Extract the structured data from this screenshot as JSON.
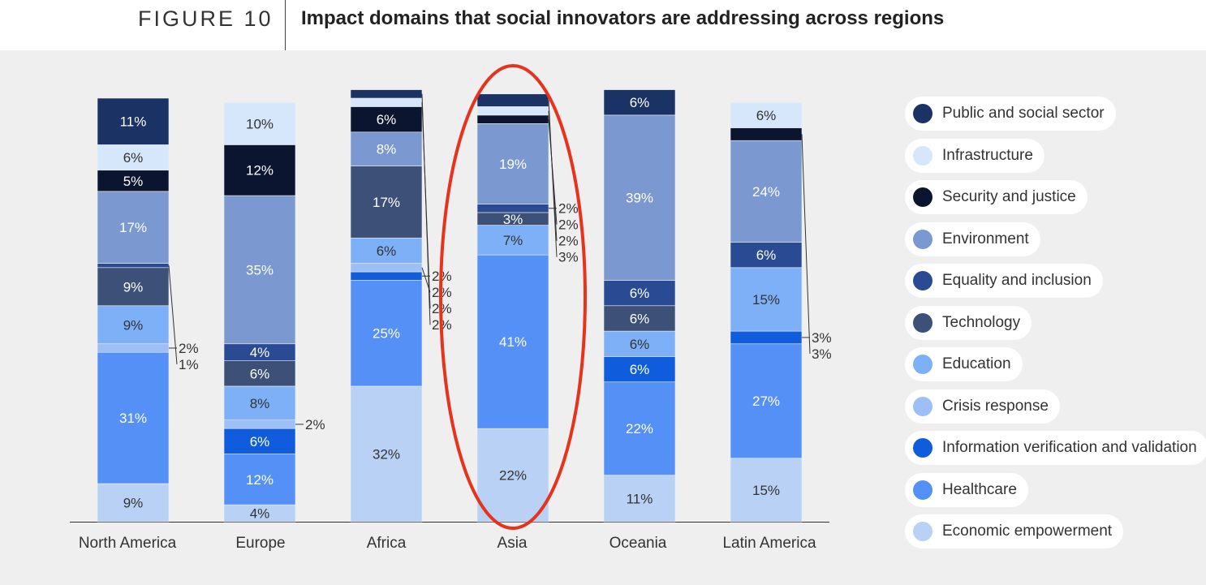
{
  "header": {
    "figure_label": "FIGURE 10",
    "title": "Impact domains that social innovators are addressing across regions"
  },
  "legend": [
    {
      "label": "Public and social sector",
      "color": "#1b3265"
    },
    {
      "label": "Infrastructure",
      "color": "#d6e6fb"
    },
    {
      "label": "Security and justice",
      "color": "#0c1530"
    },
    {
      "label": "Environment",
      "color": "#7b98d0"
    },
    {
      "label": "Equality and inclusion",
      "color": "#2a4a94"
    },
    {
      "label": "Technology",
      "color": "#3d5078"
    },
    {
      "label": "Education",
      "color": "#7eb0f7"
    },
    {
      "label": "Crisis response",
      "color": "#9dbff6"
    },
    {
      "label": "Information verification and validation",
      "color": "#0f5ddc"
    },
    {
      "label": "Healthcare",
      "color": "#5590f7"
    },
    {
      "label": "Economic empowerment",
      "color": "#b8d1f5"
    }
  ],
  "chart_data": {
    "type": "bar",
    "stacked": true,
    "categories": [
      "North America",
      "Europe",
      "Africa",
      "Asia",
      "Oceania",
      "Latin America"
    ],
    "series": [
      {
        "name": "Economic empowerment",
        "color": "#b8d1f5",
        "values": [
          9,
          4,
          32,
          22,
          11,
          15
        ]
      },
      {
        "name": "Healthcare",
        "color": "#5590f7",
        "values": [
          31,
          12,
          25,
          41,
          22,
          27
        ]
      },
      {
        "name": "Information verification and validation",
        "color": "#0f5ddc",
        "values": [
          0,
          6,
          2,
          0,
          6,
          3
        ]
      },
      {
        "name": "Crisis response",
        "color": "#9dbff6",
        "values": [
          2,
          2,
          2,
          0,
          0,
          0
        ]
      },
      {
        "name": "Education",
        "color": "#7eb0f7",
        "values": [
          9,
          8,
          6,
          7,
          6,
          15
        ]
      },
      {
        "name": "Technology",
        "color": "#3d5078",
        "values": [
          9,
          6,
          17,
          3,
          6,
          0
        ]
      },
      {
        "name": "Equality and inclusion",
        "color": "#2a4a94",
        "values": [
          1,
          4,
          0,
          2,
          6,
          6
        ]
      },
      {
        "name": "Environment",
        "color": "#7b98d0",
        "values": [
          17,
          35,
          8,
          19,
          39,
          24
        ]
      },
      {
        "name": "Security and justice",
        "color": "#0c1530",
        "values": [
          5,
          12,
          6,
          2,
          0,
          3
        ]
      },
      {
        "name": "Infrastructure",
        "color": "#d6e6fb",
        "values": [
          6,
          10,
          2,
          2,
          0,
          6
        ]
      },
      {
        "name": "Public and social sector",
        "color": "#1b3265",
        "values": [
          11,
          0,
          2,
          3,
          6,
          0
        ]
      }
    ],
    "value_suffix": "%",
    "highlight": {
      "category": "Asia",
      "color": "#e8331c"
    }
  }
}
